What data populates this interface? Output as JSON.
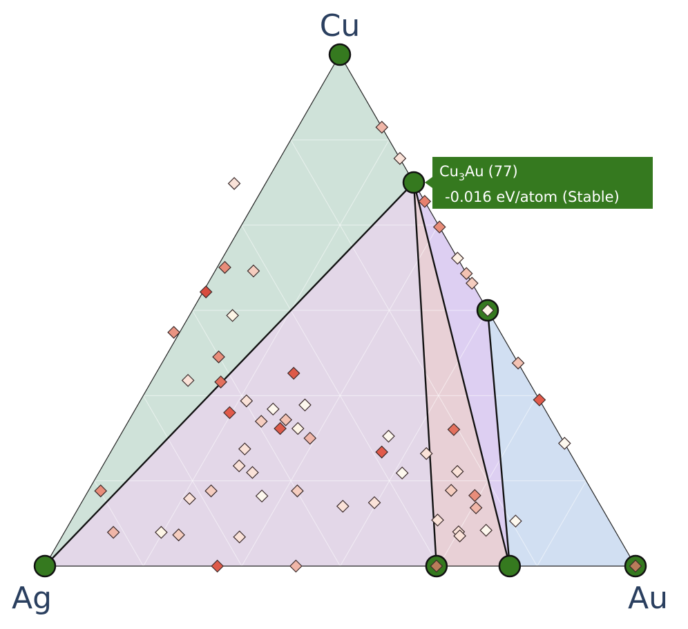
{
  "chart_data": {
    "type": "scatter",
    "subtype": "ternary-phase-diagram",
    "vertices": {
      "top": "Cu",
      "left": "Ag",
      "right": "Au"
    },
    "colors": {
      "stable_marker": "#35791f",
      "stable_outline": "#111111",
      "tooltip_bg": "#35791f",
      "vertex_label": "#2a3f5f",
      "facet_outline": "#111111"
    },
    "facets": [
      {
        "name": "Ag-Cu-Cu3Au",
        "color": "#cfe2d9",
        "vertices": [
          [
            0.0,
            1.0,
            0.0
          ],
          [
            0.0,
            0.75,
            0.25
          ],
          [
            1.0,
            0.0,
            0.0
          ]
        ]
      },
      {
        "name": "Ag-Cu3Au-AgAu",
        "color": "#e3d7e8",
        "vertices": [
          [
            1.0,
            0.0,
            0.0
          ],
          [
            0.0,
            0.75,
            0.25
          ],
          [
            0.337,
            0.0,
            0.663
          ]
        ]
      },
      {
        "name": "AgAu-Cu3Au-AgAu3",
        "color": "#e8d0d6",
        "vertices": [
          [
            0.337,
            0.0,
            0.663
          ],
          [
            0.0,
            0.75,
            0.25
          ],
          [
            0.213,
            0.0,
            0.787
          ]
        ]
      },
      {
        "name": "Cu3Au-CuAu-AgAu3",
        "color": "#ddcff2",
        "vertices": [
          [
            0.0,
            0.75,
            0.25
          ],
          [
            0.0,
            0.5,
            0.5
          ],
          [
            0.213,
            0.0,
            0.787
          ]
        ]
      },
      {
        "name": "CuAu-Au-AgAu3",
        "color": "#d1dff2",
        "vertices": [
          [
            0.0,
            0.5,
            0.5
          ],
          [
            0.0,
            0.0,
            1.0
          ],
          [
            0.213,
            0.0,
            0.787
          ]
        ]
      }
    ],
    "stable_points": [
      {
        "name": "Cu",
        "ag": 0.0,
        "cu": 1.0,
        "au": 0.0,
        "inner_color": null
      },
      {
        "name": "Ag",
        "ag": 1.0,
        "cu": 0.0,
        "au": 0.0,
        "inner_color": null
      },
      {
        "name": "Au",
        "ag": 0.0,
        "cu": 0.0,
        "au": 1.0,
        "inner_color": "#b97c5a"
      },
      {
        "name": "Cu3Au",
        "ag": 0.0,
        "cu": 0.75,
        "au": 0.25,
        "inner_color": null
      },
      {
        "name": "CuAu",
        "ag": 0.0,
        "cu": 0.5,
        "au": 0.5,
        "inner_color": "#fdf6e8"
      },
      {
        "name": "AgAu",
        "ag": 0.337,
        "cu": 0.0,
        "au": 0.663,
        "inner_color": "#b97c5a"
      },
      {
        "name": "AgAu3",
        "ag": 0.213,
        "cu": 0.0,
        "au": 0.787,
        "inner_color": null
      }
    ],
    "unstable_points": [
      {
        "ag": 0.0,
        "cu": 0.858,
        "au": 0.142,
        "color": "#f0b6a8"
      },
      {
        "ag": 0.0,
        "cu": 0.797,
        "au": 0.203,
        "color": "#fae2d8"
      },
      {
        "ag": 0.0,
        "cu": 0.713,
        "au": 0.287,
        "color": "#e7816e"
      },
      {
        "ag": 0.0,
        "cu": 0.663,
        "au": 0.337,
        "color": "#e88d7a"
      },
      {
        "ag": 0.0,
        "cu": 0.602,
        "au": 0.398,
        "color": "#fdf0e3"
      },
      {
        "ag": 0.0,
        "cu": 0.572,
        "au": 0.428,
        "color": "#f3c2b3"
      },
      {
        "ag": 0.0,
        "cu": 0.553,
        "au": 0.447,
        "color": "#f5cdbf"
      },
      {
        "ag": 0.0,
        "cu": 0.397,
        "au": 0.603,
        "color": "#f3c2b3"
      },
      {
        "ag": 0.0,
        "cu": 0.325,
        "au": 0.675,
        "color": "#e15a4a"
      },
      {
        "ag": 0.0,
        "cu": 0.24,
        "au": 0.76,
        "color": "#fdf8ee"
      },
      {
        "ag": 0.174,
        "cu": 0.267,
        "au": 0.559,
        "color": "#e3705d"
      },
      {
        "ag": 0.305,
        "cu": 0.748,
        "au": -0.053,
        "color": "#fae2d8"
      },
      {
        "ag": 0.358,
        "cu": 0.577,
        "au": 0.065,
        "color": "#f5cdbf"
      },
      {
        "ag": 0.403,
        "cu": 0.584,
        "au": 0.013,
        "color": "#e88d7a"
      },
      {
        "ag": 0.553,
        "cu": 0.457,
        "au": -0.01,
        "color": "#ea9482"
      },
      {
        "ag": 0.459,
        "cu": 0.536,
        "au": 0.005,
        "color": "#d84c3e"
      },
      {
        "ag": 0.437,
        "cu": 0.49,
        "au": 0.073,
        "color": "#fdf5e6"
      },
      {
        "ag": 0.501,
        "cu": 0.409,
        "au": 0.09,
        "color": "#e88d7a"
      },
      {
        "ag": 0.576,
        "cu": 0.363,
        "au": 0.061,
        "color": "#fae2d8"
      },
      {
        "ag": 0.522,
        "cu": 0.36,
        "au": 0.118,
        "color": "#e3705d"
      },
      {
        "ag": 0.39,
        "cu": 0.377,
        "au": 0.233,
        "color": "#de5a49"
      },
      {
        "ag": 0.497,
        "cu": 0.323,
        "au": 0.18,
        "color": "#fae2d8"
      },
      {
        "ag": 0.46,
        "cu": 0.307,
        "au": 0.233,
        "color": "#fdf8ee"
      },
      {
        "ag": 0.402,
        "cu": 0.315,
        "au": 0.283,
        "color": "#fdf8ee"
      },
      {
        "ag": 0.537,
        "cu": 0.3,
        "au": 0.163,
        "color": "#e15a4a"
      },
      {
        "ag": 0.492,
        "cu": 0.283,
        "au": 0.225,
        "color": "#f5cdbf"
      },
      {
        "ag": 0.467,
        "cu": 0.269,
        "au": 0.264,
        "color": "#de5a49"
      },
      {
        "ag": 0.449,
        "cu": 0.286,
        "au": 0.265,
        "color": "#f3c2b3"
      },
      {
        "ag": 0.437,
        "cu": 0.269,
        "au": 0.294,
        "color": "#fdf5e6"
      },
      {
        "ag": 0.426,
        "cu": 0.25,
        "au": 0.324,
        "color": "#f0b6a8"
      },
      {
        "ag": 0.547,
        "cu": 0.229,
        "au": 0.224,
        "color": "#fae2d8"
      },
      {
        "ag": 0.573,
        "cu": 0.196,
        "au": 0.231,
        "color": "#fae2d8"
      },
      {
        "ag": 0.557,
        "cu": 0.183,
        "au": 0.26,
        "color": "#fae2d8"
      },
      {
        "ag": 0.318,
        "cu": 0.223,
        "au": 0.459,
        "color": "#e15a4a"
      },
      {
        "ag": 0.304,
        "cu": 0.182,
        "au": 0.514,
        "color": "#fdf8ee"
      },
      {
        "ag": 0.291,
        "cu": 0.254,
        "au": 0.455,
        "color": "#fdf8ee"
      },
      {
        "ag": 0.832,
        "cu": 0.147,
        "au": 0.021,
        "color": "#e88d7a"
      },
      {
        "ag": 0.689,
        "cu": 0.132,
        "au": 0.179,
        "color": "#fae2d8"
      },
      {
        "ag": 0.645,
        "cu": 0.147,
        "au": 0.208,
        "color": "#f5cdbf"
      },
      {
        "ag": 0.564,
        "cu": 0.137,
        "au": 0.299,
        "color": "#fdf8ee"
      },
      {
        "ag": 0.499,
        "cu": 0.147,
        "au": 0.354,
        "color": "#f5cdbf"
      },
      {
        "ag": 0.437,
        "cu": 0.117,
        "au": 0.446,
        "color": "#fae2d8"
      },
      {
        "ag": 0.38,
        "cu": 0.124,
        "au": 0.496,
        "color": "#fae2d8"
      },
      {
        "ag": 0.238,
        "cu": 0.148,
        "au": 0.614,
        "color": "#f5cdbf"
      },
      {
        "ag": 0.244,
        "cu": 0.22,
        "au": 0.536,
        "color": "#fae2d8"
      },
      {
        "ag": 0.209,
        "cu": 0.185,
        "au": 0.606,
        "color": "#fae2d8"
      },
      {
        "ag": 0.203,
        "cu": 0.138,
        "au": 0.659,
        "color": "#e88d7a"
      },
      {
        "ag": 0.213,
        "cu": 0.114,
        "au": 0.673,
        "color": "#f0b6a8"
      },
      {
        "ag": 0.29,
        "cu": 0.09,
        "au": 0.62,
        "color": "#fae2d8"
      },
      {
        "ag": 0.266,
        "cu": 0.067,
        "au": 0.667,
        "color": "#fae2d8"
      },
      {
        "ag": 0.159,
        "cu": 0.088,
        "au": 0.753,
        "color": "#fdf8ee"
      },
      {
        "ag": 0.218,
        "cu": 0.07,
        "au": 0.712,
        "color": "#fdf8ee"
      },
      {
        "ag": 0.268,
        "cu": 0.059,
        "au": 0.673,
        "color": "#fae2d8"
      },
      {
        "ag": 0.851,
        "cu": 0.066,
        "au": 0.083,
        "color": "#f0b6a8"
      },
      {
        "ag": 0.77,
        "cu": 0.066,
        "au": 0.164,
        "color": "#fdf5e6"
      },
      {
        "ag": 0.743,
        "cu": 0.061,
        "au": 0.196,
        "color": "#f5cdbf"
      },
      {
        "ag": 0.642,
        "cu": 0.057,
        "au": 0.301,
        "color": "#fae2d8"
      },
      {
        "ag": 0.575,
        "cu": 0.0,
        "au": 0.425,
        "color": "#f0b6a8"
      },
      {
        "ag": 0.708,
        "cu": 0.0,
        "au": 0.292,
        "color": "#de5a49"
      }
    ],
    "tooltip": {
      "formula_base": "Cu",
      "formula_sub": "3",
      "formula_tail": "Au",
      "entry_id": "(77)",
      "energy_line": "-0.016 eV/atom (Stable)",
      "anchor": "Cu3Au"
    }
  }
}
